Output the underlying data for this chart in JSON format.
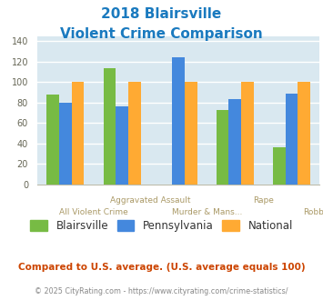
{
  "title_line1": "2018 Blairsville",
  "title_line2": "Violent Crime Comparison",
  "title_color": "#1a7abf",
  "categories": [
    "All Violent Crime",
    "Aggravated Assault",
    "Murder & Mans...",
    "Rape",
    "Robbery"
  ],
  "x_label_row1": [
    "",
    "Aggravated Assault",
    "",
    "Rape",
    ""
  ],
  "x_label_row2": [
    "All Violent Crime",
    "",
    "Murder & Mans...",
    "",
    "Robbery"
  ],
  "series": {
    "Blairsville": [
      88,
      114,
      0,
      73,
      36
    ],
    "Pennsylvania": [
      80,
      76,
      124,
      83,
      89
    ],
    "National": [
      100,
      100,
      100,
      100,
      100
    ]
  },
  "colors": {
    "Blairsville": "#77bb44",
    "Pennsylvania": "#4488dd",
    "National": "#ffaa33"
  },
  "ylim": [
    0,
    145
  ],
  "yticks": [
    0,
    20,
    40,
    60,
    80,
    100,
    120,
    140
  ],
  "background_color": "#d9e8f0",
  "grid_color": "#ffffff",
  "legend_labels": [
    "Blairsville",
    "Pennsylvania",
    "National"
  ],
  "legend_text_color": "#333333",
  "footer_text": "Compared to U.S. average. (U.S. average equals 100)",
  "footer_color": "#cc4400",
  "copyright_text": "© 2025 CityRating.com - https://www.cityrating.com/crime-statistics/",
  "copyright_color": "#888888",
  "xlabel_color": "#aa9966",
  "bar_width": 0.22
}
